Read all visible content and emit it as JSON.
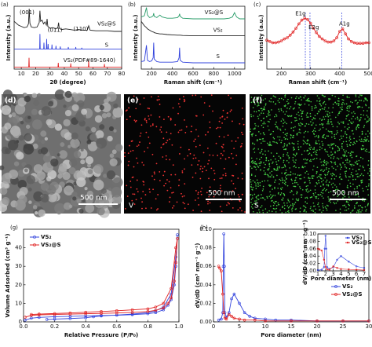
{
  "chart_data": [
    {
      "type": "line",
      "label": "(a)",
      "xlabel": "2θ (degree)",
      "ylabel": "Intensity (a.u.)",
      "xlim": [
        5,
        80
      ],
      "xticks": [
        10,
        20,
        30,
        40,
        50,
        60,
        70,
        80
      ],
      "ylim": [
        0,
        10
      ],
      "series": [
        {
          "color": "#222222",
          "style": "line",
          "x": [
            5,
            8,
            10,
            12,
            14,
            15,
            15.5,
            16,
            17,
            19,
            21,
            22.5,
            23,
            23.5,
            24.5,
            25.5,
            26.5,
            27.5,
            28,
            28.5,
            30,
            32,
            34,
            35.5,
            36,
            36.5,
            38,
            41,
            44,
            47,
            50,
            53,
            56,
            57,
            58,
            62,
            66,
            70,
            75,
            80
          ],
          "values": [
            7.6,
            7.0,
            6.8,
            6.6,
            6.7,
            7.2,
            9.6,
            7.3,
            6.7,
            6.6,
            6.7,
            7.4,
            9.3,
            7.6,
            7.8,
            7.2,
            7.5,
            7.0,
            8.0,
            6.8,
            6.5,
            6.6,
            6.4,
            6.6,
            7.4,
            6.5,
            6.3,
            6.4,
            6.3,
            6.2,
            6.3,
            6.2,
            6.2,
            6.9,
            6.2,
            6.1,
            6.1,
            6.1,
            6.0,
            6.0
          ]
        },
        {
          "color": "#3344dd",
          "style": "line",
          "x": [
            5,
            22.8,
            23,
            23.2,
            25.6,
            25.8,
            26,
            27.5,
            27.7,
            27.9,
            28.5,
            28.7,
            28.9,
            31.2,
            31.4,
            31.6,
            34,
            34.2,
            34.4,
            37,
            37.2,
            37.4,
            42.6,
            42.8,
            43,
            47.8,
            48,
            48.2,
            52,
            52.2,
            52.4,
            80
          ],
          "values": [
            3.2,
            3.2,
            5.6,
            3.2,
            3.2,
            4.2,
            3.2,
            3.2,
            4.8,
            3.2,
            3.2,
            4.0,
            3.2,
            3.2,
            3.9,
            3.2,
            3.2,
            3.7,
            3.2,
            3.2,
            3.6,
            3.2,
            3.2,
            3.5,
            3.2,
            3.2,
            3.5,
            3.2,
            3.2,
            3.4,
            3.2,
            3.2
          ]
        },
        {
          "color": "#e02020",
          "style": "line",
          "x": [
            5,
            15.2,
            15.4,
            15.6,
            35.6,
            35.8,
            36,
            44.3,
            44.5,
            44.7,
            56.8,
            57,
            57.2,
            67.8,
            68,
            68.2,
            80
          ],
          "values": [
            0.3,
            0.3,
            1.8,
            0.3,
            0.3,
            1.0,
            0.3,
            0.3,
            0.9,
            0.3,
            0.3,
            1.3,
            0.3,
            0.3,
            0.8,
            0.3,
            0.3
          ]
        }
      ],
      "annotations": [
        {
          "text": "(001)",
          "color": "#222222"
        },
        {
          "text": "(011)",
          "color": "#222222"
        },
        {
          "text": "(110)",
          "color": "#222222"
        },
        {
          "text": "VS₂@S",
          "color": "#222222"
        },
        {
          "text": "S",
          "color": "#3344dd"
        },
        {
          "text": "VS₂(PDF#89-1640)",
          "color": "#e02020"
        }
      ]
    },
    {
      "type": "line",
      "label": "(b)",
      "xlabel": "Raman shift (cm⁻¹)",
      "ylabel": "Intensity (a.u.)",
      "xlim": [
        100,
        1100
      ],
      "xticks": [
        200,
        400,
        600,
        800,
        1000
      ],
      "ylim": [
        0,
        10
      ],
      "series": [
        {
          "color": "#2a9d6a",
          "style": "line",
          "x": [
            100,
            130,
            150,
            160,
            180,
            200,
            215,
            220,
            225,
            250,
            280,
            300,
            350,
            400,
            450,
            465,
            470,
            475,
            500,
            600,
            700,
            800,
            900,
            950,
            980,
            1000,
            1020,
            1050,
            1100
          ],
          "values": [
            8.3,
            8.5,
            9.8,
            8.6,
            8.2,
            8.3,
            8.5,
            8.9,
            8.4,
            8.2,
            8.6,
            8.3,
            8.1,
            8.1,
            8.2,
            8.5,
            8.8,
            8.4,
            8.1,
            8.0,
            8.0,
            8.0,
            8.0,
            8.1,
            8.3,
            9.0,
            8.3,
            8.0,
            8.0
          ]
        },
        {
          "color": "#222222",
          "style": "line",
          "x": [
            100,
            130,
            150,
            160,
            180,
            200,
            215,
            220,
            225,
            250,
            280,
            300,
            350,
            400,
            450,
            465,
            470,
            475,
            500,
            600,
            700,
            800,
            900,
            950,
            980,
            1000,
            1020,
            1050,
            1100
          ],
          "values": [
            7.6,
            6.9,
            6.6,
            6.4,
            6.2,
            6.0,
            5.9,
            5.9,
            5.8,
            5.7,
            5.6,
            5.6,
            5.5,
            5.45,
            5.4,
            5.4,
            5.4,
            5.4,
            5.35,
            5.3,
            5.3,
            5.3,
            5.3,
            5.3,
            5.3,
            5.3,
            5.3,
            5.3,
            5.3
          ]
        },
        {
          "color": "#3344dd",
          "style": "line",
          "x": [
            100,
            130,
            150,
            160,
            180,
            200,
            215,
            220,
            225,
            250,
            280,
            300,
            350,
            400,
            450,
            465,
            470,
            475,
            500,
            600,
            700,
            800,
            900,
            950,
            980,
            1000,
            1020,
            1050,
            1100
          ],
          "values": [
            1.2,
            1.3,
            3.8,
            1.4,
            1.2,
            1.3,
            1.8,
            4.2,
            1.6,
            1.2,
            1.1,
            1.1,
            1.1,
            1.1,
            1.2,
            1.8,
            3.4,
            1.4,
            1.1,
            1.0,
            1.0,
            1.0,
            1.0,
            1.0,
            1.0,
            1.0,
            1.0,
            1.0,
            1.0
          ]
        }
      ],
      "annotations": [
        {
          "text": "VS₂@S",
          "color": "#2a9d6a"
        },
        {
          "text": "VS₂",
          "color": "#222222"
        },
        {
          "text": "S",
          "color": "#3344dd"
        }
      ]
    },
    {
      "type": "line",
      "label": "(c)",
      "xlabel": "Raman shift (cm⁻¹)",
      "ylabel": "Intensity (a.u.)",
      "xlim": [
        150,
        500
      ],
      "xticks": [
        200,
        300,
        400,
        500
      ],
      "ylim": [
        0,
        10
      ],
      "series": [
        {
          "color": "#e02020",
          "style": "line-marker",
          "x": [
            150,
            160,
            170,
            180,
            190,
            200,
            210,
            220,
            230,
            240,
            250,
            260,
            270,
            280,
            290,
            300,
            310,
            320,
            330,
            340,
            350,
            360,
            370,
            380,
            390,
            400,
            410,
            420,
            430,
            440,
            450,
            460,
            470,
            480,
            490,
            500
          ],
          "values": [
            4.6,
            4.4,
            4.2,
            4.2,
            4.3,
            4.5,
            4.8,
            5.0,
            5.4,
            5.9,
            6.5,
            7.2,
            7.8,
            8.1,
            7.9,
            7.3,
            6.5,
            5.8,
            5.2,
            4.8,
            4.5,
            4.3,
            4.3,
            4.5,
            5.0,
            6.0,
            6.4,
            5.6,
            4.8,
            4.4,
            4.2,
            4.1,
            4.1,
            4.1,
            4.2,
            4.2
          ]
        }
      ],
      "vlines": [
        282,
        298,
        407
      ],
      "annotations": [
        {
          "text": "E1g",
          "color": "#222222"
        },
        {
          "text": "E2g",
          "color": "#222222"
        },
        {
          "text": "A1g",
          "color": "#222222"
        }
      ]
    },
    {
      "type": "line",
      "label": "(g)",
      "xlabel": "Relative Pressure (P/P₀)",
      "ylabel": "Volume Adsorbed (cm³ g⁻¹)",
      "xlim": [
        0,
        1.0
      ],
      "ylim": [
        0,
        50
      ],
      "legend": "upper left",
      "xticks": [
        {
          "value": 0,
          "label": "0.0"
        },
        {
          "value": 0.2,
          "label": "0.2"
        },
        {
          "value": 0.4,
          "label": "0.4"
        },
        {
          "value": 0.6,
          "label": "0.6"
        },
        {
          "value": 0.8,
          "label": "0.8"
        },
        {
          "value": 1.0,
          "label": "1.0"
        }
      ],
      "yticks": [
        0,
        10,
        20,
        30,
        40
      ],
      "series": [
        {
          "name": "VS₂",
          "color": "#3344dd",
          "style": "line-marker",
          "x": [
            0.01,
            0.05,
            0.1,
            0.2,
            0.3,
            0.4,
            0.5,
            0.6,
            0.7,
            0.8,
            0.85,
            0.9,
            0.93,
            0.95,
            0.97,
            0.98,
            0.99,
            0.98,
            0.95,
            0.9,
            0.85,
            0.8,
            0.7,
            0.6,
            0.5,
            0.45,
            0.4,
            0.3,
            0.2,
            0.15
          ],
          "values": [
            1.0,
            2.0,
            2.4,
            2.8,
            3.0,
            3.2,
            3.4,
            3.6,
            3.9,
            4.4,
            5.0,
            6.5,
            9,
            12,
            20,
            30,
            47,
            35,
            15,
            8,
            6,
            5,
            4.2,
            3.7,
            3.2,
            2.8,
            2.2,
            1.8,
            1.5,
            1.3
          ]
        },
        {
          "name": "VS₂@S",
          "color": "#e02020",
          "style": "line-marker",
          "x": [
            0.01,
            0.05,
            0.1,
            0.2,
            0.3,
            0.4,
            0.5,
            0.6,
            0.7,
            0.8,
            0.85,
            0.9,
            0.93,
            0.95,
            0.97,
            0.98,
            0.99,
            0.98,
            0.95,
            0.9,
            0.85,
            0.8,
            0.7,
            0.6,
            0.5,
            0.4,
            0.3,
            0.2,
            0.1,
            0.05
          ],
          "values": [
            2.5,
            3.5,
            3.8,
            4.0,
            4.2,
            4.4,
            4.6,
            4.8,
            5.1,
            5.6,
            6.2,
            7.5,
            10,
            13,
            22,
            32,
            45,
            40,
            18,
            10,
            8,
            7,
            6.5,
            6.0,
            5.6,
            5.2,
            4.8,
            4.5,
            4.2,
            4.0
          ]
        }
      ]
    },
    {
      "type": "line",
      "label": "(h)",
      "xlabel": "Pore diameter (nm)",
      "ylabel": "dV/dD (cm³ nm⁻¹ g⁻¹)",
      "xlim": [
        0,
        30
      ],
      "xticks": [
        0,
        5,
        10,
        15,
        20,
        25,
        30
      ],
      "ylim": [
        0,
        0.1
      ],
      "legend": "center right",
      "yticks": [
        {
          "value": 0,
          "label": "0.00"
        },
        {
          "value": 0.02,
          "label": "0.02"
        },
        {
          "value": 0.04,
          "label": "0.04"
        },
        {
          "value": 0.06,
          "label": "0.06"
        },
        {
          "value": 0.08,
          "label": "0.08"
        },
        {
          "value": 0.1,
          "label": "0.10"
        }
      ],
      "series": [
        {
          "name": "VS₂",
          "color": "#3344dd",
          "style": "line-marker",
          "x": [
            1,
            1.5,
            1.8,
            1.9,
            2,
            2.1,
            2.2,
            2.5,
            3,
            3.5,
            4,
            5,
            6,
            7,
            8,
            10,
            12,
            15,
            20,
            25,
            30
          ],
          "values": [
            0.002,
            0.003,
            0.01,
            0.06,
            0.095,
            0.06,
            0.01,
            0.005,
            0.01,
            0.025,
            0.03,
            0.02,
            0.01,
            0.006,
            0.004,
            0.003,
            0.002,
            0.002,
            0.001,
            0.001,
            0.001
          ]
        },
        {
          "name": "VS₂@S",
          "color": "#e02020",
          "style": "line-marker",
          "x": [
            1,
            1.2,
            1.5,
            1.8,
            2,
            2.2,
            2.5,
            3,
            3.5,
            4,
            5,
            6,
            8,
            10,
            15,
            20,
            25,
            30
          ],
          "values": [
            0.06,
            0.058,
            0.055,
            0.03,
            0.01,
            0.004,
            0.003,
            0.008,
            0.006,
            0.004,
            0.003,
            0.002,
            0.002,
            0.001,
            0.001,
            0.001,
            0.001,
            0.001
          ]
        }
      ]
    },
    {
      "type": "line",
      "xlabel": "Pore diameter (nm)",
      "ylabel": "dV/dD (cm³ nm⁻¹ g⁻¹)",
      "xlim": [
        1,
        7
      ],
      "xticks": [
        1,
        2,
        3,
        4,
        5,
        6,
        7
      ],
      "ylim": [
        0,
        0.1
      ],
      "legend": "upper right",
      "yticks": [
        {
          "value": 0,
          "label": "0.00"
        },
        {
          "value": 0.02,
          "label": "0.02"
        },
        {
          "value": 0.04,
          "label": "0.04"
        },
        {
          "value": 0.06,
          "label": "0.06"
        },
        {
          "value": 0.08,
          "label": "0.08"
        },
        {
          "value": 0.1,
          "label": "0.10"
        }
      ],
      "series": [
        {
          "name": "VS₂",
          "color": "#3344dd",
          "style": "line-marker",
          "x": [
            1,
            1.5,
            1.8,
            1.9,
            2,
            2.1,
            2.2,
            2.5,
            3,
            3.5,
            4,
            5,
            6,
            7
          ],
          "values": [
            0.002,
            0.003,
            0.01,
            0.06,
            0.095,
            0.06,
            0.01,
            0.005,
            0.01,
            0.03,
            0.04,
            0.025,
            0.012,
            0.008
          ]
        },
        {
          "name": "VS₂@S",
          "color": "#e02020",
          "style": "line-marker",
          "x": [
            1,
            1.2,
            1.5,
            1.8,
            2,
            2.2,
            2.5,
            3,
            3.5,
            4,
            5,
            6,
            7
          ],
          "values": [
            0.06,
            0.058,
            0.055,
            0.03,
            0.01,
            0.004,
            0.003,
            0.012,
            0.008,
            0.005,
            0.004,
            0.003,
            0.002
          ]
        }
      ]
    }
  ],
  "images": [
    {
      "label": "(d)",
      "scale": "500 nm"
    },
    {
      "label": "(e)",
      "scale": "500 nm",
      "element": "V"
    },
    {
      "label": "(f)",
      "scale": "500 nm",
      "element": "S"
    }
  ]
}
